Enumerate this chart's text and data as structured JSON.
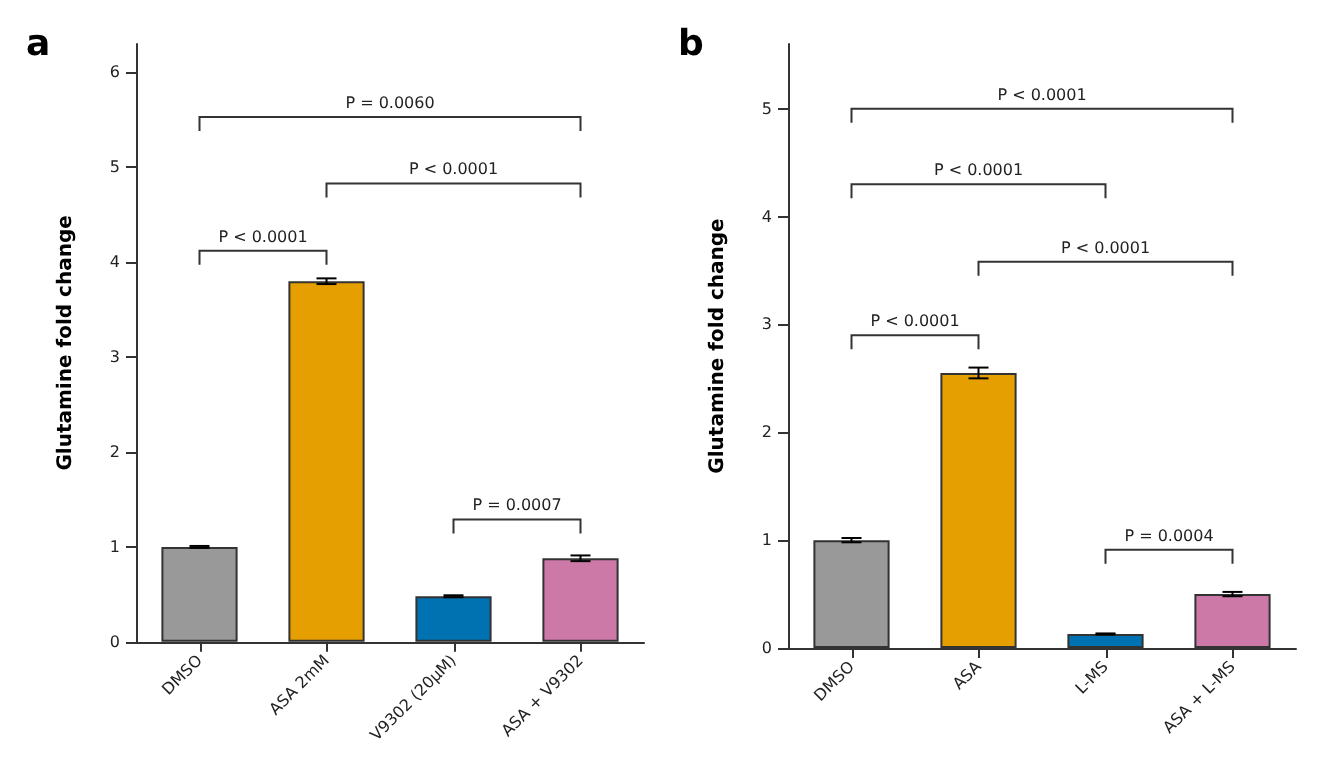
{
  "chart_data": [
    {
      "type": "bar",
      "title": "a",
      "ylabel": "Glutamine fold change",
      "categories": [
        "DMSO",
        "ASA 2mM",
        "V9302 (20μM)",
        "ASA + V9302"
      ],
      "values": [
        1.0,
        3.8,
        0.48,
        0.88
      ],
      "colors": [
        "#999999",
        "#e69f00",
        "#0072b2",
        "#cc79a7"
      ],
      "errors": [
        0.01,
        0.03,
        0.01,
        0.03
      ],
      "ylim": [
        0,
        6.3
      ],
      "yticks": [
        0,
        1,
        2,
        3,
        4,
        5,
        6
      ],
      "grid": false,
      "annotations": [
        "P = 0.0060",
        "P < 0.0001",
        "P < 0.0001",
        "P = 0.0007"
      ]
    },
    {
      "type": "bar",
      "title": "b",
      "ylabel": "Glutamine fold change",
      "categories": [
        "DMSO",
        "ASA",
        "L-MS",
        "ASA + L-MS"
      ],
      "values": [
        1.0,
        2.55,
        0.13,
        0.5
      ],
      "colors": [
        "#999999",
        "#e69f00",
        "#0072b2",
        "#cc79a7"
      ],
      "errors": [
        0.02,
        0.05,
        0.005,
        0.02
      ],
      "ylim": [
        0,
        5.6
      ],
      "yticks": [
        0,
        1,
        2,
        3,
        4,
        5
      ],
      "grid": false,
      "annotations": [
        "P < 0.0001",
        "P < 0.0001",
        "P < 0.0001",
        "P < 0.0001",
        "P = 0.0004"
      ]
    }
  ]
}
